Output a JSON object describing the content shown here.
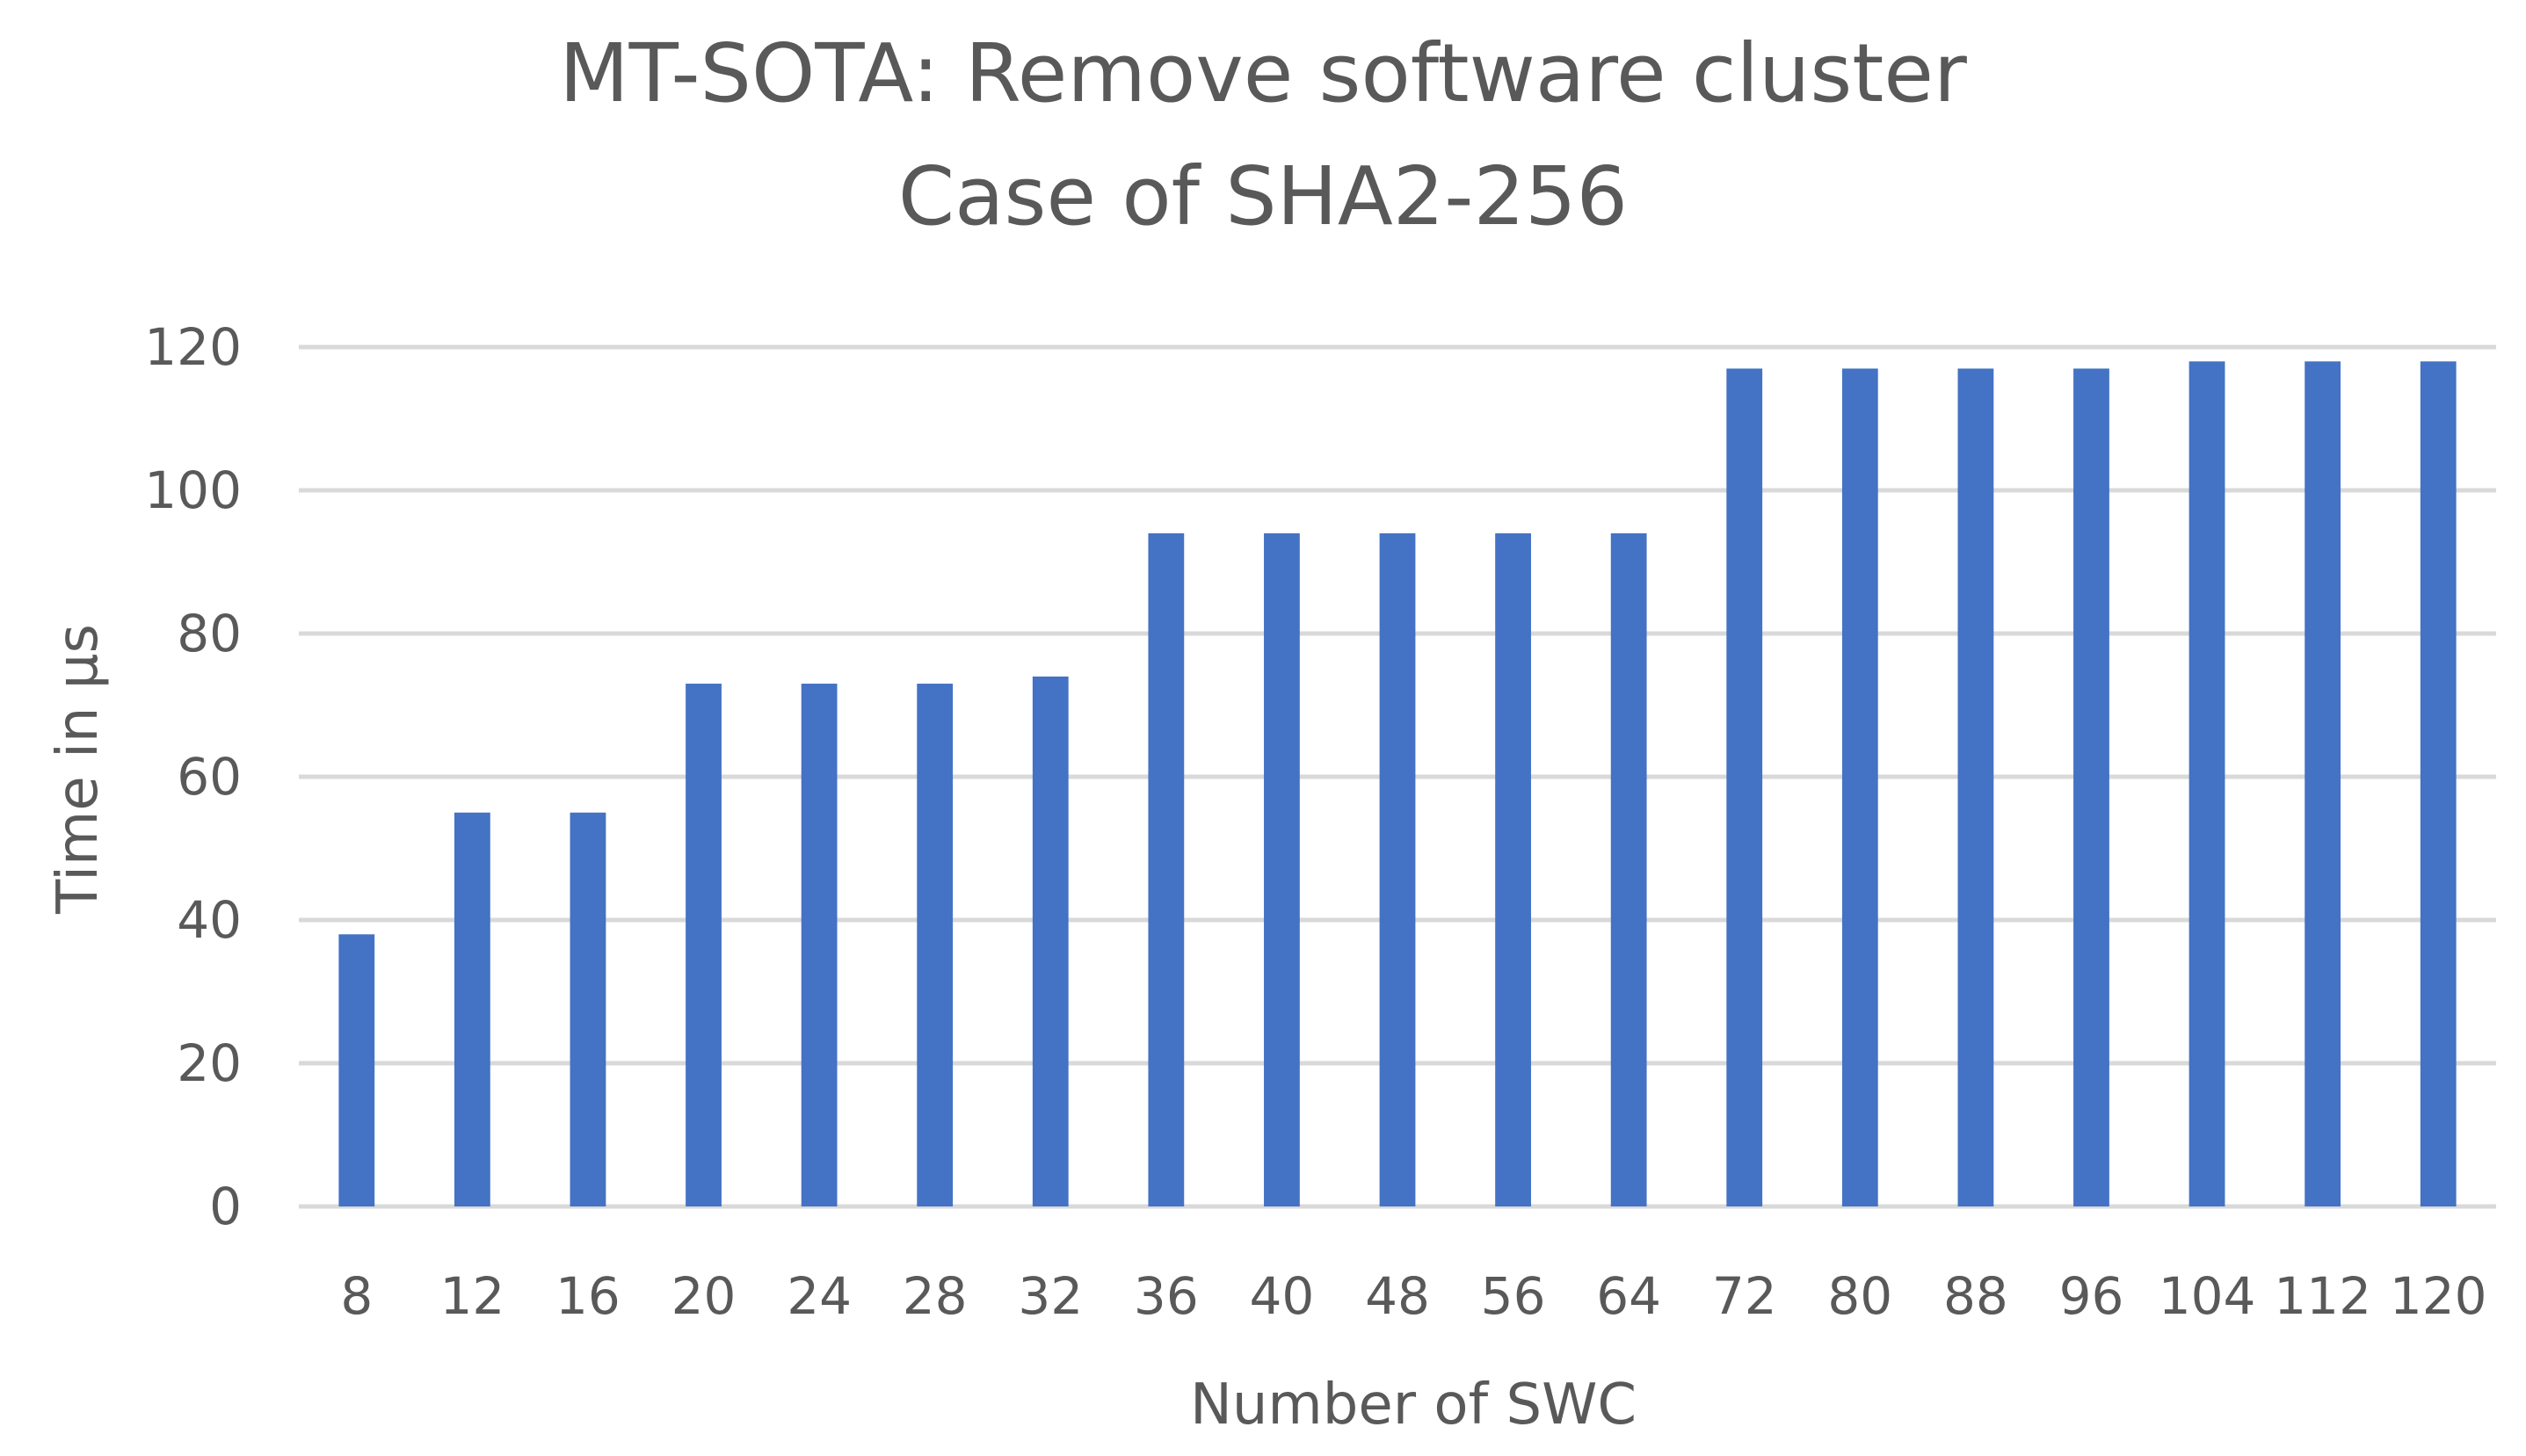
{
  "chart_data": {
    "type": "bar",
    "title": "MT-SOTA: Remove software cluster",
    "subtitle": "Case of SHA2-256",
    "xlabel": "Number of SWC",
    "ylabel": "Time in µs",
    "ylim": [
      0,
      120
    ],
    "yticks": [
      0,
      20,
      40,
      60,
      80,
      100,
      120
    ],
    "grid": true,
    "legend": "none",
    "categories": [
      "8",
      "12",
      "16",
      "20",
      "24",
      "28",
      "32",
      "36",
      "40",
      "48",
      "56",
      "64",
      "72",
      "80",
      "88",
      "96",
      "104",
      "112",
      "120"
    ],
    "series": [
      {
        "name": "Time in µs",
        "values": [
          38,
          55,
          55,
          73,
          73,
          73,
          74,
          94,
          94,
          94,
          94,
          94,
          117,
          117,
          117,
          117,
          118,
          118,
          118
        ]
      }
    ],
    "colors": {
      "bar": "#4472C4",
      "grid": "#D9D9D9",
      "text": "#595959"
    }
  }
}
